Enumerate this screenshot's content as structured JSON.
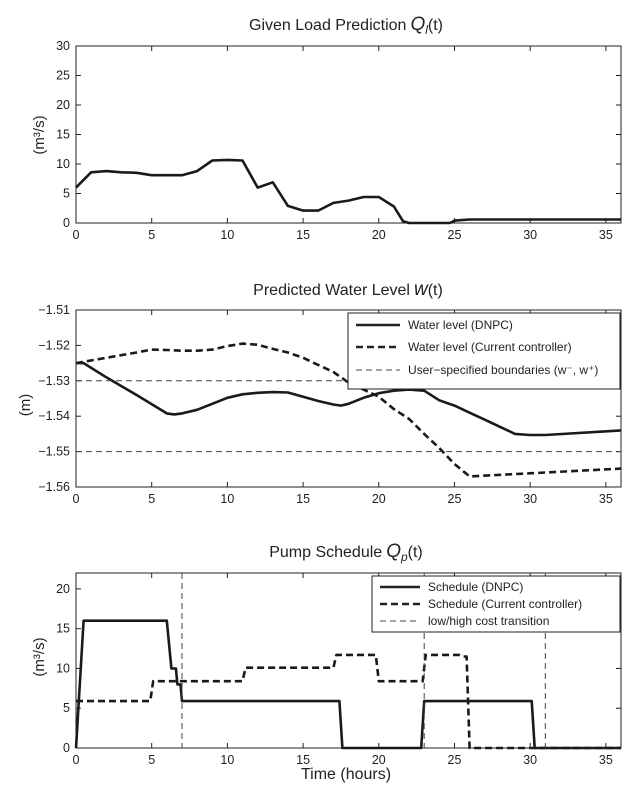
{
  "chart_data": [
    {
      "type": "line",
      "title": "Given Load Prediction",
      "title_symbol": "Q",
      "title_subscript": "l",
      "title_suffix": "(t)",
      "ylabel": "(m³/s)",
      "xlim": [
        0,
        36
      ],
      "ylim": [
        0,
        30
      ],
      "xticks": [
        0,
        5,
        10,
        15,
        20,
        25,
        30,
        35
      ],
      "yticks": [
        0,
        5,
        10,
        15,
        20,
        25,
        30
      ],
      "series": [
        {
          "style": "solid",
          "x": [
            0,
            1,
            2,
            3,
            4,
            5,
            6,
            7,
            8,
            9,
            10,
            11,
            12,
            13,
            14,
            15,
            16,
            17,
            18,
            19,
            20,
            21,
            21.6,
            22,
            23,
            24,
            24.7,
            25,
            26,
            36
          ],
          "y": [
            6,
            8.6,
            8.8,
            8.6,
            8.5,
            8.1,
            8.1,
            8.1,
            8.8,
            10.6,
            10.7,
            10.6,
            6,
            6.9,
            2.9,
            2.1,
            2.1,
            3.4,
            3.8,
            4.4,
            4.4,
            2.8,
            0.3,
            0,
            0,
            0,
            0,
            0.4,
            0.6,
            0.6
          ]
        }
      ]
    },
    {
      "type": "line",
      "title": "Predicted Water Level",
      "title_symbol": "w",
      "title_subscript": "",
      "title_suffix": "(t)",
      "ylabel": "(m)",
      "xlim": [
        0,
        36
      ],
      "ylim": [
        -1.56,
        -1.51
      ],
      "xticks": [
        0,
        5,
        10,
        15,
        20,
        25,
        30,
        35
      ],
      "yticks": [
        -1.51,
        -1.52,
        -1.53,
        -1.54,
        -1.55,
        -1.56
      ],
      "ytick_labels": [
        "−1.51",
        "−1.52",
        "−1.53",
        "−1.54",
        "−1.55",
        "−1.56"
      ],
      "legend_position": "top-right",
      "series": [
        {
          "name": "Water level (DNPC)",
          "style": "solid",
          "x": [
            0,
            0.5,
            2,
            4,
            6,
            6.5,
            7,
            8,
            9,
            10,
            11,
            12,
            13,
            14,
            15,
            16,
            17,
            17.5,
            18,
            19,
            20,
            21,
            22,
            23,
            24,
            25,
            26,
            27,
            28,
            29,
            30,
            31,
            36
          ],
          "y": [
            -1.525,
            -1.525,
            -1.529,
            -1.534,
            -1.5392,
            -1.5395,
            -1.5392,
            -1.5382,
            -1.5365,
            -1.5348,
            -1.5338,
            -1.5334,
            -1.5332,
            -1.5333,
            -1.5345,
            -1.5357,
            -1.5367,
            -1.537,
            -1.5365,
            -1.5348,
            -1.5335,
            -1.5328,
            -1.5325,
            -1.5328,
            -1.5355,
            -1.537,
            -1.539,
            -1.541,
            -1.543,
            -1.545,
            -1.5453,
            -1.5453,
            -1.544
          ]
        },
        {
          "name": "Water level (Current controller)",
          "style": "dashed",
          "x": [
            0,
            2,
            4,
            5,
            6,
            7,
            8,
            9,
            10,
            11,
            12,
            13,
            14,
            15,
            16,
            17,
            18,
            19,
            20,
            21,
            22,
            23,
            24,
            25,
            26,
            36
          ],
          "y": [
            -1.525,
            -1.5235,
            -1.522,
            -1.5212,
            -1.5213,
            -1.5215,
            -1.5215,
            -1.5212,
            -1.5202,
            -1.5195,
            -1.5198,
            -1.521,
            -1.522,
            -1.5235,
            -1.5255,
            -1.5275,
            -1.5305,
            -1.5325,
            -1.5345,
            -1.538,
            -1.5408,
            -1.545,
            -1.549,
            -1.5535,
            -1.557,
            -1.5548
          ]
        },
        {
          "name": "User−specified boundaries",
          "legend_suffix": " (w⁻, w⁺)",
          "style": "thin-dashed",
          "hlines": [
            -1.53,
            -1.55
          ]
        }
      ]
    },
    {
      "type": "line",
      "title": "Pump Schedule",
      "title_symbol": "Q",
      "title_subscript": "p",
      "title_suffix": "(t)",
      "ylabel": "(m³/s)",
      "xlabel": "Time (hours)",
      "xlim": [
        0,
        36
      ],
      "ylim": [
        0,
        22
      ],
      "xticks": [
        0,
        5,
        10,
        15,
        20,
        25,
        30,
        35
      ],
      "yticks": [
        0,
        5,
        10,
        15,
        20
      ],
      "legend_position": "top-right",
      "series": [
        {
          "name": "Schedule (DNPC)",
          "style": "solid",
          "x": [
            0,
            0.5,
            6,
            6.3,
            6.6,
            6.7,
            6.9,
            7,
            7.1,
            17.4,
            17.6,
            22.8,
            23.0,
            30.1,
            30.3,
            36
          ],
          "y": [
            0,
            16,
            16,
            10,
            10,
            8,
            8,
            5.9,
            5.9,
            5.9,
            0,
            0,
            5.9,
            5.9,
            0,
            0
          ]
        },
        {
          "name": "Schedule (Current controller)",
          "style": "dashed",
          "x": [
            0,
            4.9,
            5.1,
            11,
            11.2,
            17,
            17.2,
            19.8,
            20,
            22.9,
            23.1,
            25.3,
            25.5,
            25.8,
            26,
            31,
            31.2,
            36
          ],
          "y": [
            5.9,
            5.9,
            8.4,
            8.4,
            10.1,
            10.1,
            11.7,
            11.7,
            8.4,
            8.4,
            11.7,
            11.7,
            11.5,
            11.5,
            0,
            0,
            0,
            0
          ]
        },
        {
          "name": "low/high cost transition",
          "style": "thin-dashed",
          "vlines": [
            7,
            23,
            31
          ]
        }
      ]
    }
  ]
}
